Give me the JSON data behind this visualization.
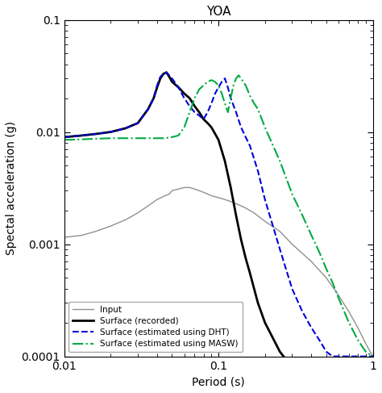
{
  "title": "YOA",
  "xlabel": "Period (s)",
  "ylabel": "Spectal acceleration (g)",
  "xlim": [
    0.01,
    1.0
  ],
  "ylim": [
    0.0001,
    0.1
  ],
  "legend": [
    {
      "label": "Input",
      "color": "#909090",
      "ls": "-",
      "lw": 1.0
    },
    {
      "label": "Surface (recorded)",
      "color": "#000000",
      "ls": "-",
      "lw": 2.0
    },
    {
      "label": "Surface (estimated using DHT)",
      "color": "#0000dd",
      "ls": "--",
      "lw": 1.5
    },
    {
      "label": "Surface (estimated using MASW)",
      "color": "#00aa44",
      "ls": "-.",
      "lw": 1.5
    }
  ],
  "input": {
    "x": [
      0.01,
      0.013,
      0.016,
      0.02,
      0.025,
      0.03,
      0.035,
      0.04,
      0.045,
      0.048,
      0.05,
      0.055,
      0.06,
      0.065,
      0.07,
      0.075,
      0.08,
      0.085,
      0.09,
      0.1,
      0.11,
      0.12,
      0.13,
      0.15,
      0.17,
      0.2,
      0.25,
      0.3,
      0.4,
      0.5,
      0.6,
      0.7,
      0.8,
      0.9,
      1.0
    ],
    "y": [
      0.00115,
      0.0012,
      0.0013,
      0.00145,
      0.00165,
      0.0019,
      0.0022,
      0.0025,
      0.0027,
      0.0028,
      0.003,
      0.0031,
      0.0032,
      0.0032,
      0.0031,
      0.003,
      0.0029,
      0.0028,
      0.0027,
      0.0026,
      0.0025,
      0.0024,
      0.0023,
      0.0021,
      0.0019,
      0.0016,
      0.0013,
      0.001,
      0.0007,
      0.0005,
      0.00035,
      0.00025,
      0.00018,
      0.00013,
      0.0001
    ]
  },
  "surface_recorded": {
    "x": [
      0.01,
      0.013,
      0.016,
      0.02,
      0.025,
      0.03,
      0.035,
      0.038,
      0.04,
      0.042,
      0.044,
      0.046,
      0.048,
      0.05,
      0.055,
      0.06,
      0.065,
      0.07,
      0.075,
      0.08,
      0.085,
      0.09,
      0.1,
      0.11,
      0.12,
      0.13,
      0.14,
      0.15,
      0.16,
      0.18,
      0.2,
      0.25,
      0.3,
      0.4,
      0.5,
      0.6,
      0.7,
      0.8,
      0.9,
      1.0
    ],
    "y": [
      0.009,
      0.0093,
      0.0096,
      0.01,
      0.0108,
      0.012,
      0.016,
      0.02,
      0.025,
      0.03,
      0.033,
      0.034,
      0.031,
      0.028,
      0.025,
      0.022,
      0.02,
      0.017,
      0.015,
      0.013,
      0.012,
      0.011,
      0.0085,
      0.0055,
      0.0032,
      0.0018,
      0.0011,
      0.00075,
      0.00055,
      0.0003,
      0.0002,
      0.00011,
      8e-05,
      5e-05,
      3e-05,
      2e-05,
      1.4e-05,
      1e-05,
      8.5e-06,
      0.0001
    ]
  },
  "surface_dht": {
    "x": [
      0.01,
      0.013,
      0.016,
      0.02,
      0.025,
      0.03,
      0.035,
      0.038,
      0.04,
      0.042,
      0.044,
      0.046,
      0.05,
      0.055,
      0.06,
      0.065,
      0.07,
      0.075,
      0.08,
      0.085,
      0.09,
      0.095,
      0.1,
      0.105,
      0.11,
      0.115,
      0.12,
      0.13,
      0.14,
      0.15,
      0.16,
      0.18,
      0.2,
      0.25,
      0.3,
      0.35,
      0.4,
      0.45,
      0.5,
      0.55,
      0.6,
      0.7,
      0.8,
      0.9,
      1.0
    ],
    "y": [
      0.009,
      0.0093,
      0.0096,
      0.01,
      0.0108,
      0.012,
      0.016,
      0.02,
      0.026,
      0.031,
      0.033,
      0.034,
      0.03,
      0.025,
      0.02,
      0.017,
      0.015,
      0.014,
      0.013,
      0.015,
      0.018,
      0.022,
      0.025,
      0.028,
      0.03,
      0.025,
      0.02,
      0.015,
      0.011,
      0.009,
      0.0075,
      0.0045,
      0.0025,
      0.0009,
      0.0004,
      0.00025,
      0.00018,
      0.00014,
      0.00011,
      0.0001,
      0.0001,
      0.0001,
      0.0001,
      0.0001,
      0.0001
    ]
  },
  "surface_masw": {
    "x": [
      0.01,
      0.013,
      0.016,
      0.02,
      0.025,
      0.03,
      0.035,
      0.04,
      0.045,
      0.05,
      0.055,
      0.06,
      0.065,
      0.07,
      0.075,
      0.08,
      0.085,
      0.09,
      0.095,
      0.1,
      0.105,
      0.11,
      0.115,
      0.12,
      0.125,
      0.13,
      0.135,
      0.14,
      0.15,
      0.16,
      0.17,
      0.18,
      0.2,
      0.25,
      0.3,
      0.35,
      0.4,
      0.45,
      0.5,
      0.55,
      0.6,
      0.7,
      0.8,
      0.9,
      1.0
    ],
    "y": [
      0.0085,
      0.0086,
      0.0087,
      0.0088,
      0.0088,
      0.0088,
      0.0088,
      0.0088,
      0.0088,
      0.009,
      0.0093,
      0.011,
      0.015,
      0.02,
      0.024,
      0.026,
      0.028,
      0.029,
      0.028,
      0.026,
      0.022,
      0.018,
      0.015,
      0.02,
      0.026,
      0.03,
      0.032,
      0.03,
      0.026,
      0.021,
      0.018,
      0.016,
      0.011,
      0.0055,
      0.0028,
      0.0018,
      0.0012,
      0.00085,
      0.0006,
      0.00045,
      0.00033,
      0.0002,
      0.00014,
      0.00011,
      0.0001
    ]
  }
}
